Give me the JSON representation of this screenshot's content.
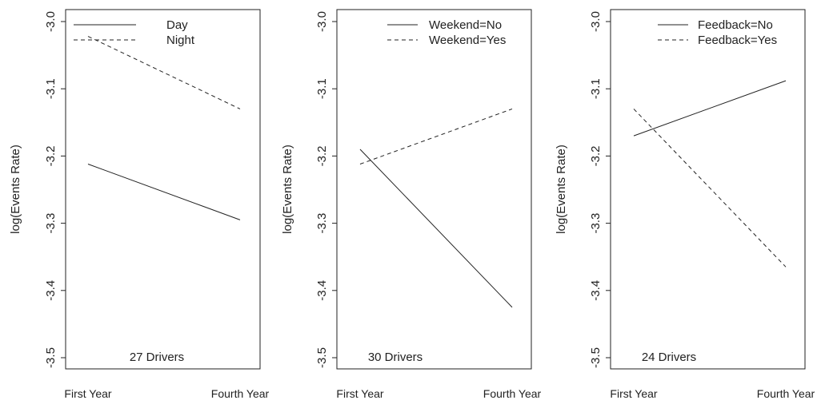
{
  "chart_data": [
    {
      "type": "line",
      "ylabel": "log(Events Rate)",
      "categories": [
        "First Year",
        "Fourth Year"
      ],
      "ylim": [
        -3.5,
        -3.0
      ],
      "yticks": [
        "-3.0",
        "-3.1",
        "-3.2",
        "-3.3",
        "-3.4",
        "-3.5"
      ],
      "annotation": "27 Drivers",
      "legend_position": "top-left",
      "series": [
        {
          "name": "Day",
          "dash": "solid",
          "values": [
            -3.212,
            -3.295
          ]
        },
        {
          "name": "Night",
          "dash": "dashed",
          "values": [
            -3.022,
            -3.13
          ]
        }
      ]
    },
    {
      "type": "line",
      "ylabel": "log(Events Rate)",
      "categories": [
        "First Year",
        "Fourth Year"
      ],
      "ylim": [
        -3.5,
        -3.0
      ],
      "yticks": [
        "-3.0",
        "-3.1",
        "-3.2",
        "-3.3",
        "-3.4",
        "-3.5"
      ],
      "annotation": "30 Drivers",
      "legend_position": "top-right",
      "series": [
        {
          "name": "Weekend=No",
          "dash": "solid",
          "values": [
            -3.19,
            -3.425
          ]
        },
        {
          "name": "Weekend=Yes",
          "dash": "dashed",
          "values": [
            -3.212,
            -3.13
          ]
        }
      ]
    },
    {
      "type": "line",
      "ylabel": "log(Events Rate)",
      "categories": [
        "First Year",
        "Fourth Year"
      ],
      "ylim": [
        -3.5,
        -3.0
      ],
      "yticks": [
        "-3.0",
        "-3.1",
        "-3.2",
        "-3.3",
        "-3.4",
        "-3.5"
      ],
      "annotation": "24 Drivers",
      "legend_position": "top-right",
      "series": [
        {
          "name": "Feedback=No",
          "dash": "solid",
          "values": [
            -3.17,
            -3.088
          ]
        },
        {
          "name": "Feedback=Yes",
          "dash": "dashed",
          "values": [
            -3.13,
            -3.365
          ]
        }
      ]
    }
  ]
}
